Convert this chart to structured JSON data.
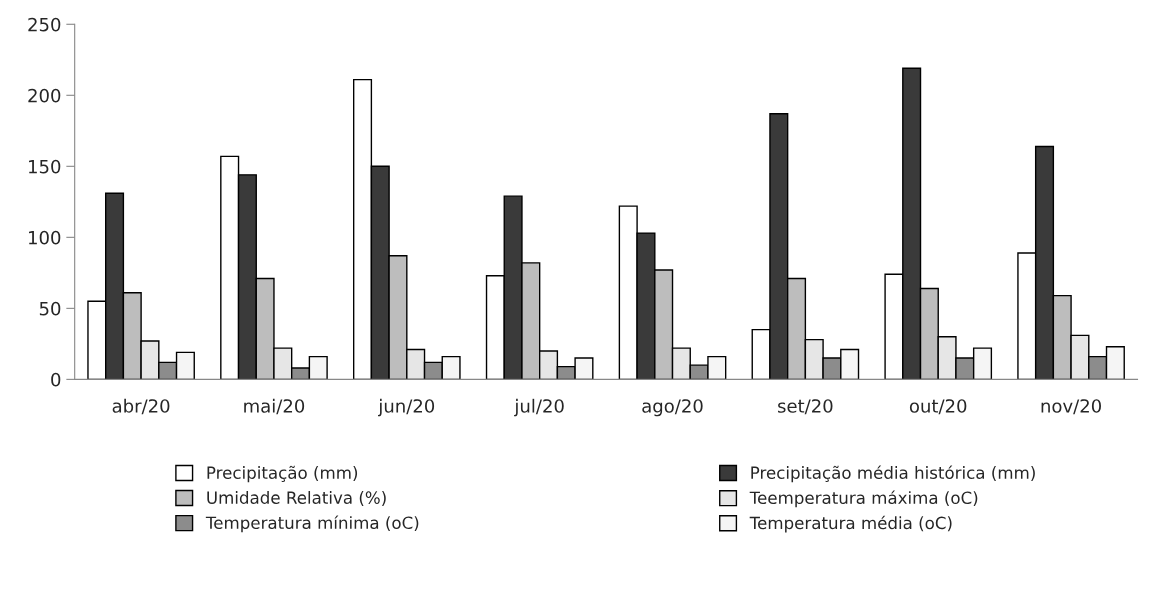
{
  "chart_data": {
    "type": "bar",
    "categories": [
      "abr/20",
      "mai/20",
      "jun/20",
      "jul/20",
      "ago/20",
      "set/20",
      "out/20",
      "nov/20"
    ],
    "series": [
      {
        "name": "Precipitação (mm)",
        "color": "#ffffff",
        "values": [
          55,
          157,
          211,
          73,
          122,
          35,
          74,
          89
        ]
      },
      {
        "name": "Precipitação média histórica (mm)",
        "color": "#3a3a3a",
        "values": [
          131,
          144,
          150,
          129,
          103,
          187,
          219,
          164
        ]
      },
      {
        "name": "Umidade Relativa (%)",
        "color": "#bdbdbd",
        "values": [
          61,
          71,
          87,
          82,
          77,
          71,
          64,
          59
        ]
      },
      {
        "name": "Teemperatura máxima (oC)",
        "color": "#e6e6e6",
        "values": [
          27,
          22,
          21,
          20,
          22,
          28,
          30,
          31
        ]
      },
      {
        "name": "Temperatura mínima (oC)",
        "color": "#8c8c8c",
        "values": [
          12,
          8,
          12,
          9,
          10,
          15,
          15,
          16
        ]
      },
      {
        "name": "Temperatura média (oC)",
        "color": "#f5f5f5",
        "values": [
          19,
          16,
          16,
          15,
          16,
          21,
          22,
          23
        ]
      }
    ],
    "ylim": [
      0,
      250
    ],
    "yticks": [
      0,
      50,
      100,
      150,
      200,
      250
    ],
    "grid": false,
    "legend": "bottom"
  }
}
